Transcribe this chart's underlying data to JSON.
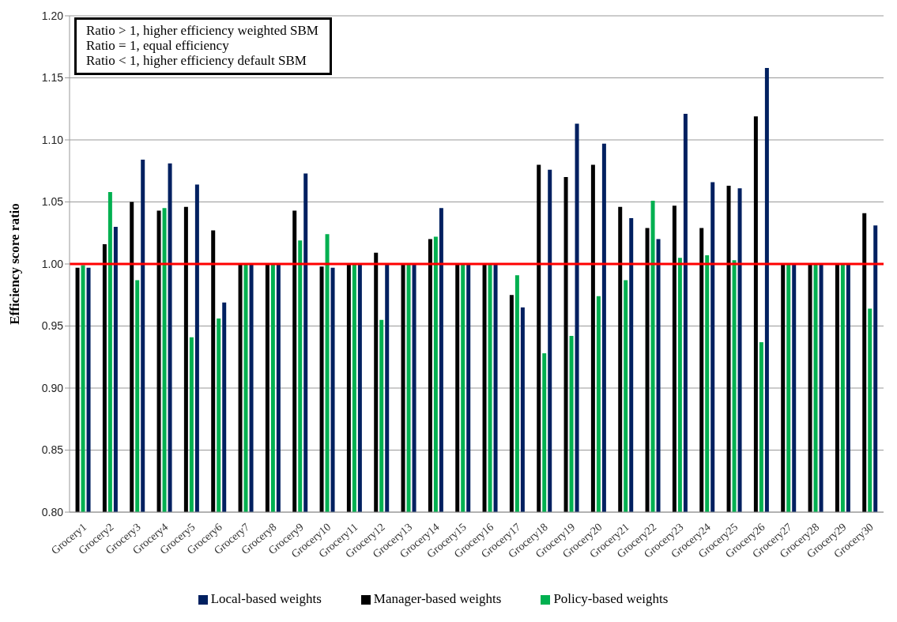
{
  "chart_data": {
    "type": "bar",
    "ylabel": "Efficiency score ratio",
    "categories": [
      "Grocery1",
      "Grocery2",
      "Grocery3",
      "Grocery4",
      "Grocery5",
      "Grocery6",
      "Grocery7",
      "Grocery8",
      "Grocery9",
      "Grocery10",
      "Grocery11",
      "Grocery12",
      "Grocery13",
      "Grocery14",
      "Grocery15",
      "Grocery16",
      "Grocery17",
      "Grocery18",
      "Grocery19",
      "Grocery20",
      "Grocery21",
      "Grocery22",
      "Grocery23",
      "Grocery24",
      "Grocery25",
      "Grocery26",
      "Grocery27",
      "Grocery28",
      "Grocery29",
      "Grocery30"
    ],
    "series": [
      {
        "name": "Manager-based weights",
        "color": "#000000",
        "values": [
          0.997,
          1.016,
          1.05,
          1.043,
          1.046,
          1.027,
          1.0,
          1.0,
          1.043,
          0.998,
          1.0,
          1.009,
          1.0,
          1.02,
          1.0,
          1.0,
          0.975,
          1.08,
          1.07,
          1.08,
          1.046,
          1.029,
          1.047,
          1.029,
          1.063,
          1.119,
          1.0,
          1.0,
          1.0,
          1.041
        ]
      },
      {
        "name": "Policy-based weights",
        "color": "#00b050",
        "values": [
          0.999,
          1.058,
          0.987,
          1.045,
          0.941,
          0.956,
          1.0,
          1.0,
          1.019,
          1.024,
          1.0,
          0.955,
          1.0,
          1.022,
          1.0,
          1.0,
          0.991,
          0.928,
          0.942,
          0.974,
          0.987,
          1.051,
          1.005,
          1.007,
          1.003,
          0.937,
          1.0,
          1.0,
          1.0,
          0.964
        ]
      },
      {
        "name": "Local-based weights",
        "color": "#002060",
        "values": [
          0.997,
          1.03,
          1.084,
          1.081,
          1.064,
          0.969,
          1.0,
          1.0,
          1.073,
          0.997,
          1.0,
          1.0,
          1.0,
          1.045,
          1.0,
          1.0,
          0.965,
          1.076,
          1.113,
          1.097,
          1.037,
          1.02,
          1.121,
          1.066,
          1.061,
          1.158,
          1.0,
          1.0,
          1.0,
          1.031
        ]
      }
    ],
    "ylim": [
      0.8,
      1.2
    ],
    "yticks": [
      {
        "value": 0.8,
        "label": "0.80"
      },
      {
        "value": 0.85,
        "label": "0.85"
      },
      {
        "value": 0.9,
        "label": "0.90"
      },
      {
        "value": 0.95,
        "label": "0.95"
      },
      {
        "value": 1.0,
        "label": "1.00"
      },
      {
        "value": 1.05,
        "label": "1.05"
      },
      {
        "value": 1.1,
        "label": "1.10"
      },
      {
        "value": 1.15,
        "label": "1.15"
      },
      {
        "value": 1.2,
        "label": "1.20"
      }
    ],
    "grid": "y",
    "legend": "bottom",
    "ref_lines": [
      {
        "axis": "y",
        "value": 1.0,
        "color": "#ff0000"
      }
    ],
    "annotations": [
      "Ratio > 1, higher efficiency weighted SBM",
      "Ratio = 1, equal efficiency",
      "Ratio < 1, higher efficiency default SBM"
    ]
  }
}
